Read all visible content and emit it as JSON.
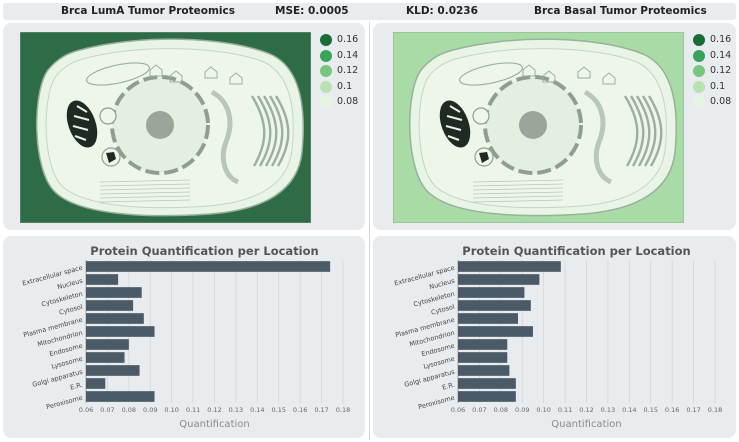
{
  "header": {
    "left_title": "Brca LumA Tumor Proteomics",
    "mse": "MSE: 0.0005",
    "kld": "KLD: 0.0236",
    "right_title": "Brca Basal Tumor Proteomics"
  },
  "legend": {
    "labels": [
      "0.16",
      "0.14",
      "0.12",
      "0.1",
      "0.08"
    ],
    "colors": [
      "#1b6b37",
      "#3aa25b",
      "#78c67e",
      "#b9e2b3",
      "#e6f4e1"
    ]
  },
  "cells": {
    "left_background": "#2e6b47",
    "right_background": "#a9dba6"
  },
  "chart_data": [
    {
      "type": "bar",
      "orientation": "horizontal",
      "title": "Protein Quantification per Location",
      "xlabel": "Quantification",
      "ylabel": "",
      "xlim": [
        0.06,
        0.18
      ],
      "xticks": [
        "0.06",
        "0.07",
        "0.08",
        "0.09",
        "0.10",
        "0.11",
        "0.12",
        "0.13",
        "0.14",
        "0.15",
        "0.16",
        "0.17",
        "0.18"
      ],
      "categories": [
        "Extracellular space",
        "Nucleus",
        "Cytoskeleton",
        "Cytosol",
        "Plasma membrane",
        "Mitochondrion",
        "Endosome",
        "Lysosome",
        "Golgi apparatus",
        "E.R.",
        "Peroxisome"
      ],
      "values": [
        0.174,
        0.075,
        0.086,
        0.082,
        0.087,
        0.092,
        0.08,
        0.078,
        0.085,
        0.069,
        0.092
      ],
      "color": "#4a5a66"
    },
    {
      "type": "bar",
      "orientation": "horizontal",
      "title": "Protein Quantification per Location",
      "xlabel": "Quantification",
      "ylabel": "",
      "xlim": [
        0.06,
        0.18
      ],
      "xticks": [
        "0.06",
        "0.07",
        "0.08",
        "0.09",
        "0.10",
        "0.11",
        "0.12",
        "0.13",
        "0.14",
        "0.15",
        "0.16",
        "0.17",
        "0.18"
      ],
      "categories": [
        "Extracellular space",
        "Nucleus",
        "Cytoskeleton",
        "Cytosol",
        "Plasma membrane",
        "Mitochondrion",
        "Endosome",
        "Lysosome",
        "Golgi apparatus",
        "E.R.",
        "Peroxisome"
      ],
      "values": [
        0.108,
        0.098,
        0.091,
        0.094,
        0.088,
        0.095,
        0.083,
        0.083,
        0.084,
        0.087,
        0.087
      ],
      "color": "#4a5a66"
    }
  ]
}
